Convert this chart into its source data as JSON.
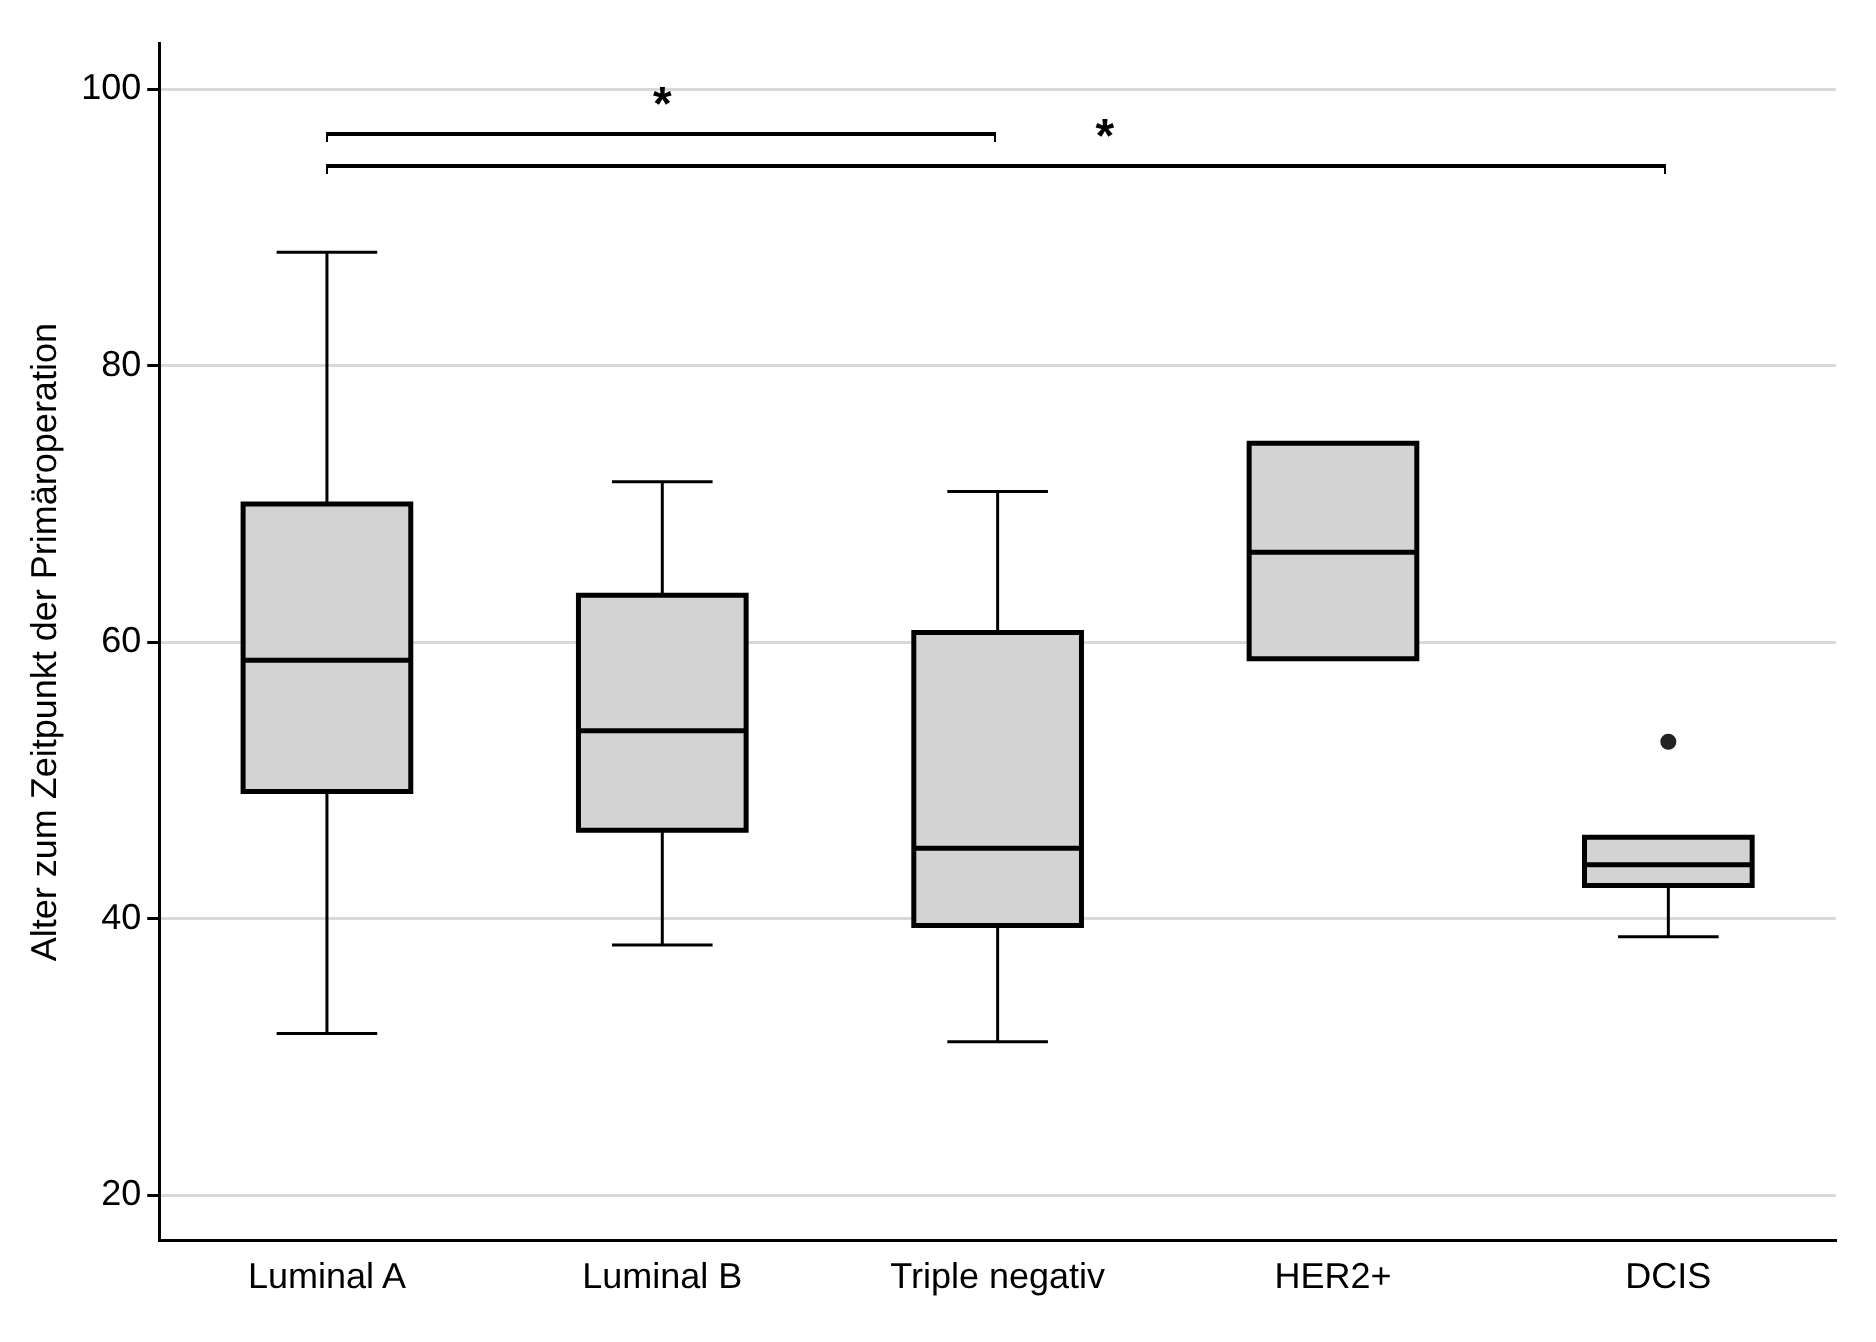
{
  "chart_data": {
    "type": "box",
    "ylabel": "Alter zum Zeitpunkt der Primäroperation",
    "categories": [
      "Luminal A",
      "Luminal B",
      "Triple negativ",
      "HER2+",
      "DCIS"
    ],
    "boxes": [
      {
        "low": 31.7,
        "q1": 49.2,
        "median": 58.7,
        "q3": 70.0,
        "high": 88.2
      },
      {
        "low": 38.1,
        "q1": 46.4,
        "median": 53.6,
        "q3": 63.4,
        "high": 71.6
      },
      {
        "low": 31.1,
        "q1": 39.5,
        "median": 45.1,
        "q3": 60.7,
        "high": 70.9
      },
      {
        "low": 58.8,
        "q1": 58.8,
        "median": 66.5,
        "q3": 74.4,
        "high": 74.4
      },
      {
        "low": 38.7,
        "q1": 42.4,
        "median": 43.9,
        "q3": 45.9,
        "high": 45.9,
        "outliers": [
          52.8
        ]
      }
    ],
    "color": "#d3d3d3",
    "ylim": [
      16.7,
      103.3
    ],
    "yticks": [
      20,
      40,
      60,
      80,
      100
    ],
    "grid": "y",
    "legend": false,
    "annotations": [
      "*",
      "*"
    ]
  }
}
